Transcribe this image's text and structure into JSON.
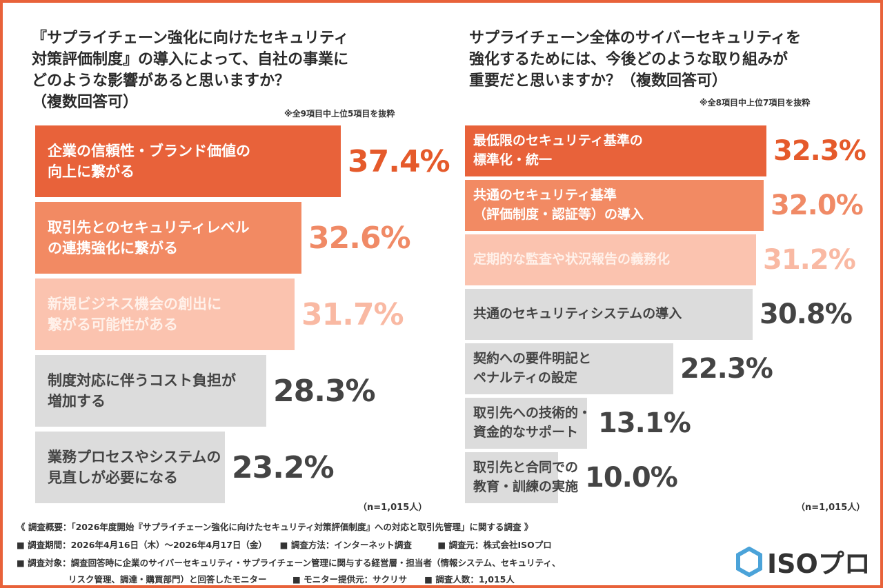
{
  "chart_data": [
    {
      "type": "bar",
      "orientation": "horizontal",
      "title": "『サプライチェーン強化に向けたセキュリティ\n対策評価制度』の導入によって、自社の事業に\nどのような影響があると思いますか？\n（複数回答可）",
      "note": "※全9項目中上位5項目を抜粋",
      "sample": "（n=1,015人）",
      "categories": [
        "企業の信頼性・ブランド価値の\n向上に繋がる",
        "取引先とのセキュリティレベル\nの連携強化に繋がる",
        "新規ビジネス機会の創出に\n繋がる可能性がある",
        "制度対応に伴うコスト負担が\n増加する",
        "業務プロセスやシステムの\n見直しが必要になる"
      ],
      "values": [
        37.4,
        32.6,
        31.7,
        28.3,
        23.2
      ],
      "labels": [
        "37.4%",
        "32.6%",
        "31.7%",
        "28.3%",
        "23.2%"
      ],
      "colors": [
        "#E8623A",
        "#F28A63",
        "#FBC3AF",
        "#DCDCDC",
        "#DCDCDC"
      ]
    },
    {
      "type": "bar",
      "orientation": "horizontal",
      "title": "サプライチェーン全体のサイバーセキュリティを\n強化するためには、今後どのような取り組みが\n重要だと思いますか？（複数回答可）",
      "note": "※全8項目中上位7項目を抜粋",
      "sample": "（n=1,015人）",
      "categories": [
        "最低限のセキュリティ基準の\n標準化・統一",
        "共通のセキュリティ基準\n（評価制度・認証等）の導入",
        "定期的な監査や状況報告の義務化",
        "共通のセキュリティシステムの導入",
        "契約への要件明記と\nペナルティの設定",
        "取引先への技術的・\n資金的なサポート",
        "取引先と合同での\n教育・訓練の実施"
      ],
      "values": [
        32.3,
        32.0,
        31.2,
        30.8,
        22.3,
        13.1,
        10.0
      ],
      "labels": [
        "32.3%",
        "32.0%",
        "31.2%",
        "30.8%",
        "22.3%",
        "13.1%",
        "10.0%"
      ],
      "colors": [
        "#E8623A",
        "#F28A63",
        "#FBC3AF",
        "#DCDCDC",
        "#DCDCDC",
        "#DCDCDC",
        "#DCDCDC"
      ]
    }
  ],
  "footer": {
    "line1": "《 調査概要：「2026年度開始『サプライチェーン強化に向けたセキュリティ対策評価制度』への対応と取引先管理」に関する調査 》",
    "line2": "■ 調査期間：2026年4月16日（木）～2026年4月17日（金）　　■ 調査方法：インターネット調査　　　■ 調査元：株式会社ISOプロ",
    "line3": "■ 調査対象：調査回答時に企業のサイバーセキュリティ・サプライチェーン管理に関与する経営層・担当者（情報システム、セキュリティ、",
    "line4": "　　　　　　リスク管理、調達・購買部門）と回答したモニター　　　■ モニター提供元：サクリサ　　■ 調査人数：1,015人"
  },
  "logo": {
    "text": "ISOプロ",
    "color": "#4BA3D9"
  }
}
